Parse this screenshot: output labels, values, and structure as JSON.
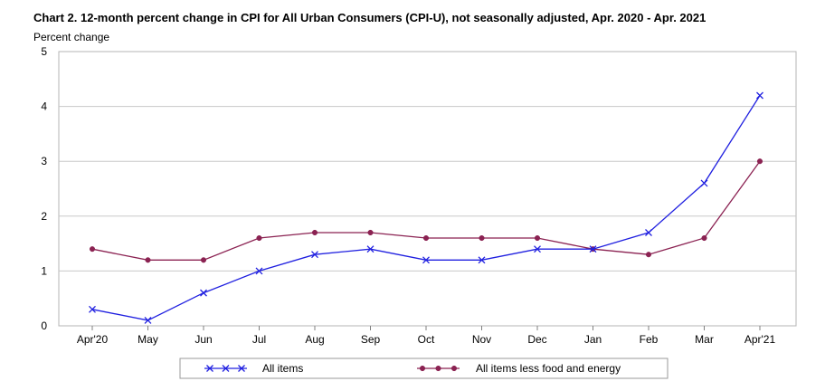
{
  "chart_data": {
    "type": "line",
    "title": "Chart 2. 12-month percent change in CPI for All Urban Consumers (CPI-U), not seasonally adjusted, Apr. 2020 - Apr. 2021",
    "ylabel": "Percent change",
    "xlabel": "",
    "categories": [
      "Apr'20",
      "May",
      "Jun",
      "Jul",
      "Aug",
      "Sep",
      "Oct",
      "Nov",
      "Dec",
      "Jan",
      "Feb",
      "Mar",
      "Apr'21"
    ],
    "ylim": [
      0,
      5
    ],
    "yticks": [
      0,
      1,
      2,
      3,
      4,
      5
    ],
    "grid": true,
    "legend_position": "bottom",
    "series": [
      {
        "name": "All items",
        "marker": "x",
        "color": "#2020e0",
        "values": [
          0.3,
          0.1,
          0.6,
          1.0,
          1.3,
          1.4,
          1.2,
          1.2,
          1.4,
          1.4,
          1.7,
          2.6,
          4.2
        ]
      },
      {
        "name": "All items less food and energy",
        "marker": "dot",
        "color": "#8b2252",
        "values": [
          1.4,
          1.2,
          1.2,
          1.6,
          1.7,
          1.7,
          1.6,
          1.6,
          1.6,
          1.4,
          1.3,
          1.6,
          3.0
        ]
      }
    ]
  }
}
